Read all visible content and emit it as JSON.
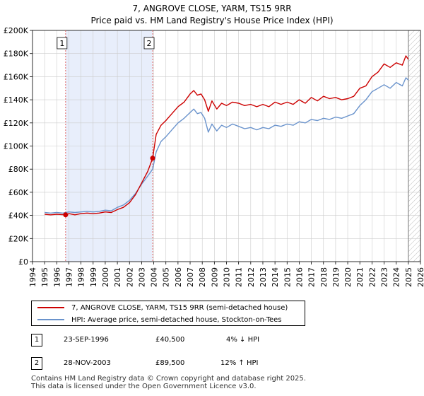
{
  "colors": {
    "property": "#cc0000",
    "hpi": "#6a93cc",
    "band": "#e8eefb",
    "vline": "#e06666",
    "grid": "#cccccc"
  },
  "chart_data": {
    "type": "line",
    "title": "7, ANGROVE CLOSE, YARM, TS15 9RR",
    "subtitle": "Price paid vs. HM Land Registry's House Price Index (HPI)",
    "xlabel": "",
    "ylabel": "",
    "xlim": [
      1994,
      2026
    ],
    "ylim": [
      0,
      200000
    ],
    "grid": true,
    "x_ticks": [
      "1994",
      "1995",
      "1996",
      "1997",
      "1998",
      "1999",
      "2000",
      "2001",
      "2002",
      "2003",
      "2004",
      "2005",
      "2006",
      "2007",
      "2008",
      "2009",
      "2010",
      "2011",
      "2012",
      "2013",
      "2014",
      "2015",
      "2016",
      "2017",
      "2018",
      "2019",
      "2020",
      "2021",
      "2022",
      "2023",
      "2024",
      "2025",
      "2026"
    ],
    "y_ticks": [
      {
        "value": 0,
        "label": "£0"
      },
      {
        "value": 20000,
        "label": "£20K"
      },
      {
        "value": 40000,
        "label": "£40K"
      },
      {
        "value": 60000,
        "label": "£60K"
      },
      {
        "value": 80000,
        "label": "£80K"
      },
      {
        "value": 100000,
        "label": "£100K"
      },
      {
        "value": 120000,
        "label": "£120K"
      },
      {
        "value": 140000,
        "label": "£140K"
      },
      {
        "value": 160000,
        "label": "£160K"
      },
      {
        "value": 180000,
        "label": "£180K"
      },
      {
        "value": 200000,
        "label": "£200K"
      }
    ],
    "shaded_ranges": [
      [
        1996.73,
        2003.91
      ]
    ],
    "hatched_from": 2025.0,
    "series": [
      {
        "name": "7, ANGROVE CLOSE, YARM, TS15 9RR (semi-detached house)",
        "color": "#cc0000",
        "x": [
          1995.0,
          1995.5,
          1996.0,
          1996.73,
          1997.0,
          1997.5,
          1998.0,
          1998.5,
          1999.0,
          1999.5,
          2000.0,
          2000.5,
          2001.0,
          2001.5,
          2002.0,
          2002.5,
          2003.0,
          2003.5,
          2003.91,
          2004.2,
          2004.6,
          2005.0,
          2005.5,
          2006.0,
          2006.5,
          2007.0,
          2007.3,
          2007.6,
          2007.9,
          2008.2,
          2008.5,
          2008.8,
          2009.2,
          2009.6,
          2010.0,
          2010.5,
          2011.0,
          2011.5,
          2012.0,
          2012.5,
          2013.0,
          2013.5,
          2014.0,
          2014.5,
          2015.0,
          2015.5,
          2016.0,
          2016.5,
          2017.0,
          2017.5,
          2018.0,
          2018.5,
          2019.0,
          2019.5,
          2020.0,
          2020.5,
          2021.0,
          2021.5,
          2022.0,
          2022.5,
          2023.0,
          2023.5,
          2024.0,
          2024.5,
          2024.8,
          2025.0
        ],
        "y": [
          41000,
          40500,
          41000,
          40500,
          41500,
          40500,
          41500,
          42000,
          41500,
          42000,
          43000,
          42500,
          45000,
          47000,
          51000,
          58000,
          68000,
          78000,
          89500,
          110000,
          118000,
          122000,
          128000,
          134000,
          138000,
          145000,
          148000,
          144000,
          145000,
          140000,
          130000,
          139000,
          132000,
          137000,
          135000,
          138000,
          137000,
          135000,
          136000,
          134000,
          136000,
          134000,
          138000,
          136000,
          138000,
          136000,
          140000,
          137000,
          142000,
          139000,
          143000,
          141000,
          142000,
          140000,
          141000,
          143000,
          150000,
          152000,
          160000,
          164000,
          171000,
          168000,
          172000,
          170000,
          178000,
          175000
        ]
      },
      {
        "name": "HPI: Average price, semi-detached house, Stockton-on-Tees",
        "color": "#6a93cc",
        "x": [
          1995.0,
          1995.5,
          1996.0,
          1996.5,
          1997.0,
          1997.5,
          1998.0,
          1998.5,
          1999.0,
          1999.5,
          2000.0,
          2000.5,
          2001.0,
          2001.5,
          2002.0,
          2002.5,
          2003.0,
          2003.5,
          2003.91,
          2004.2,
          2004.6,
          2005.0,
          2005.5,
          2006.0,
          2006.5,
          2007.0,
          2007.3,
          2007.6,
          2007.9,
          2008.2,
          2008.5,
          2008.8,
          2009.2,
          2009.6,
          2010.0,
          2010.5,
          2011.0,
          2011.5,
          2012.0,
          2012.5,
          2013.0,
          2013.5,
          2014.0,
          2014.5,
          2015.0,
          2015.5,
          2016.0,
          2016.5,
          2017.0,
          2017.5,
          2018.0,
          2018.5,
          2019.0,
          2019.5,
          2020.0,
          2020.5,
          2021.0,
          2021.5,
          2022.0,
          2022.5,
          2023.0,
          2023.5,
          2024.0,
          2024.5,
          2024.8,
          2025.0
        ],
        "y": [
          42500,
          42000,
          42500,
          42000,
          43000,
          42500,
          43000,
          43500,
          43000,
          43500,
          44500,
          44000,
          47000,
          49000,
          53000,
          59000,
          67000,
          74000,
          80000,
          95000,
          104000,
          108000,
          114000,
          120000,
          124000,
          129000,
          132000,
          128000,
          129000,
          124000,
          112000,
          119000,
          113000,
          118000,
          116000,
          119000,
          117000,
          115000,
          116000,
          114000,
          116000,
          115000,
          118000,
          117000,
          119000,
          118000,
          121000,
          120000,
          123000,
          122000,
          124000,
          123000,
          125000,
          124000,
          126000,
          128000,
          135000,
          140000,
          147000,
          150000,
          153000,
          150000,
          155000,
          152000,
          159000,
          157000
        ]
      }
    ],
    "annotations": [
      {
        "label": "1",
        "x": 1996.73,
        "y": 40500
      },
      {
        "label": "2",
        "x": 2003.91,
        "y": 89500
      }
    ]
  },
  "legend": {
    "items": [
      {
        "label": "7, ANGROVE CLOSE, YARM, TS15 9RR (semi-detached house)"
      },
      {
        "label": "HPI: Average price, semi-detached house, Stockton-on-Tees"
      }
    ]
  },
  "transactions": [
    {
      "num": "1",
      "date": "23-SEP-1996",
      "price": "£40,500",
      "hpi": "4% ↓ HPI"
    },
    {
      "num": "2",
      "date": "28-NOV-2003",
      "price": "£89,500",
      "hpi": "12% ↑ HPI"
    }
  ],
  "footer": {
    "line1": "Contains HM Land Registry data © Crown copyright and database right 2025.",
    "line2": "This data is licensed under the Open Government Licence v3.0."
  }
}
